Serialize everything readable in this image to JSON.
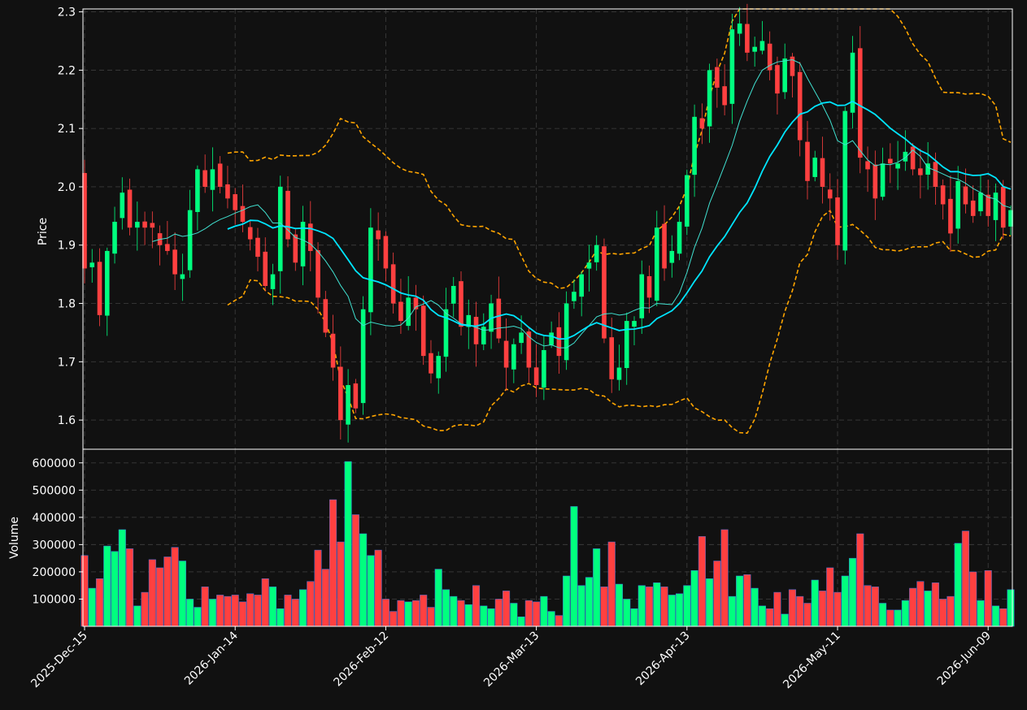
{
  "chart_data": {
    "type": "candlestick",
    "colors": {
      "background": "#111111",
      "up": "#00ff7f",
      "down": "#ff4040",
      "ma_fast": "#40e0d0",
      "ma_slow": "#00e5ff",
      "bollinger": "#ffa500",
      "grid": "#3a3a3a",
      "text": "#ffffff"
    },
    "price_panel": {
      "ylabel": "Price",
      "ylim": [
        1.55,
        2.305
      ],
      "yticks": [
        "1.6",
        "1.7",
        "1.8",
        "1.9",
        "2.0",
        "2.1",
        "2.2",
        "2.3"
      ]
    },
    "volume_panel": {
      "ylabel": "Volume",
      "ylim": [
        0,
        650000
      ],
      "yticks": [
        "100000",
        "200000",
        "300000",
        "400000",
        "500000",
        "600000"
      ]
    },
    "xaxis": {
      "tick_labels": [
        "2025-Dec-15",
        "2026-Jan-14",
        "2026-Feb-12",
        "2026-Mar-13",
        "2026-Apr-13",
        "2026-May-11",
        "2026-Jun-09"
      ],
      "tick_index": [
        0,
        20,
        40,
        60,
        80,
        100,
        120
      ],
      "num_bars": 124
    },
    "series": [
      {
        "name": "OHLC",
        "style": "candles"
      },
      {
        "name": "MA10",
        "style": "thin-line"
      },
      {
        "name": "MA20",
        "style": "thick-line"
      },
      {
        "name": "Bollinger",
        "style": "dashed"
      }
    ],
    "ohlc_close": [
      1.86,
      1.87,
      1.78,
      1.89,
      1.94,
      1.99,
      1.93,
      1.94,
      1.93,
      1.93,
      1.9,
      1.89,
      1.85,
      1.85,
      1.96,
      2.03,
      2.0,
      2.03,
      2.0,
      1.98,
      1.96,
      1.94,
      1.91,
      1.88,
      1.83,
      1.85,
      2.0,
      1.91,
      1.87,
      1.94,
      1.89,
      1.81,
      1.75,
      1.69,
      1.6,
      1.66,
      1.62,
      1.79,
      1.93,
      1.91,
      1.86,
      1.8,
      1.77,
      1.81,
      1.79,
      1.71,
      1.68,
      1.71,
      1.79,
      1.83,
      1.76,
      1.78,
      1.73,
      1.76,
      1.8,
      1.74,
      1.69,
      1.73,
      1.75,
      1.69,
      1.66,
      1.72,
      1.75,
      1.71,
      1.8,
      1.82,
      1.85,
      1.87,
      1.9,
      1.74,
      1.67,
      1.69,
      1.77,
      1.77,
      1.85,
      1.81,
      1.93,
      1.86,
      1.89,
      1.94,
      2.02,
      2.12,
      2.1,
      2.2,
      2.17,
      2.14,
      2.27,
      2.28,
      2.23,
      2.24,
      2.25,
      2.2,
      2.16,
      2.22,
      2.19,
      2.08,
      2.01,
      2.05,
      2.0,
      1.98,
      1.9,
      2.13,
      2.23,
      2.05,
      2.03,
      1.98,
      2.04,
      2.04,
      2.04,
      2.06,
      2.03,
      2.02,
      2.04,
      2.0,
      1.97,
      1.92,
      2.01,
      1.97,
      1.95,
      1.99,
      1.95,
      1.99,
      1.93,
      1.96
    ],
    "volume": [
      260000,
      140000,
      175000,
      295000,
      275000,
      355000,
      285000,
      75000,
      125000,
      245000,
      215000,
      255000,
      290000,
      240000,
      100000,
      70000,
      145000,
      100000,
      115000,
      110000,
      115000,
      90000,
      120000,
      115000,
      175000,
      145000,
      65000,
      115000,
      100000,
      135000,
      165000,
      280000,
      210000,
      465000,
      310000,
      605000,
      410000,
      340000,
      260000,
      280000,
      100000,
      55000,
      95000,
      90000,
      95000,
      115000,
      70000,
      210000,
      135000,
      110000,
      95000,
      80000,
      150000,
      75000,
      65000,
      100000,
      130000,
      85000,
      35000,
      95000,
      90000,
      110000,
      55000,
      40000,
      185000,
      440000,
      150000,
      180000,
      285000,
      145000,
      310000,
      155000,
      100000,
      65000,
      150000,
      145000,
      160000,
      145000,
      115000,
      120000,
      150000,
      205000,
      330000,
      175000,
      240000,
      355000,
      110000,
      185000,
      190000,
      140000,
      75000,
      65000,
      125000,
      45000,
      135000,
      110000,
      85000,
      170000,
      130000,
      215000,
      125000,
      185000,
      250000,
      340000,
      150000,
      145000,
      85000,
      60000,
      60000,
      95000,
      140000,
      165000,
      130000,
      160000,
      100000,
      110000,
      305000,
      350000,
      200000,
      95000,
      205000,
      75000,
      65000,
      135000
    ]
  }
}
